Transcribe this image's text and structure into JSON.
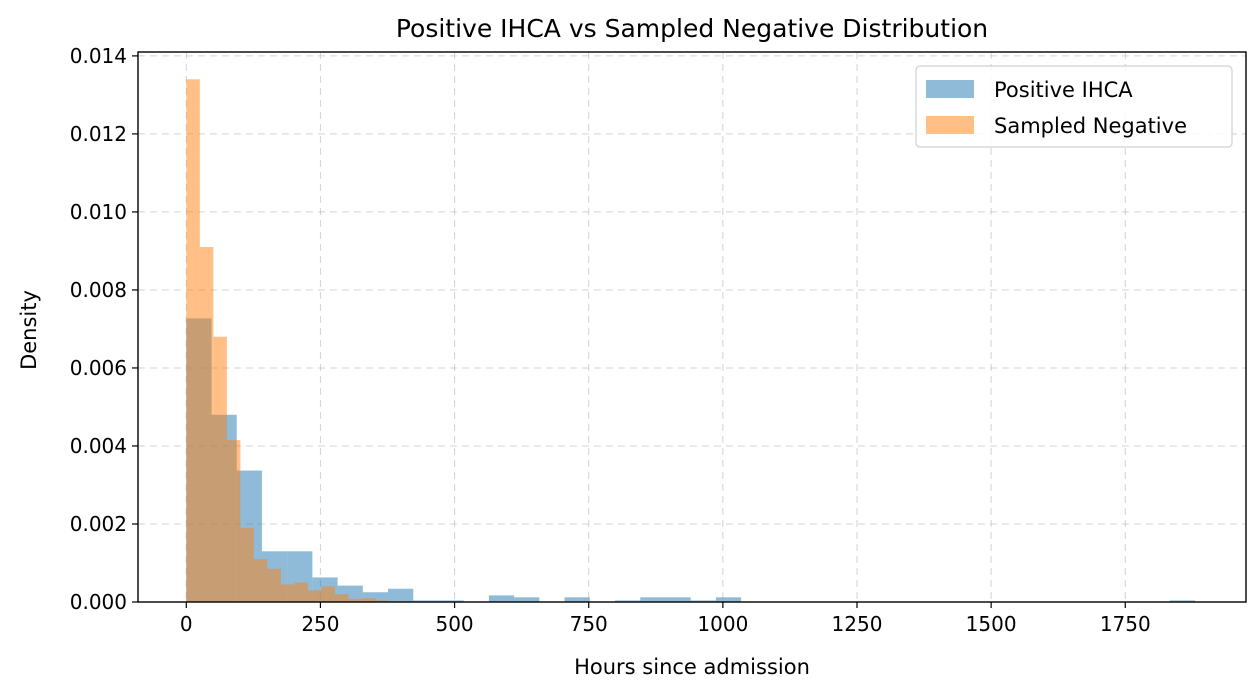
{
  "chart_data": {
    "type": "histogram",
    "title": "Positive IHCA vs Sampled Negative Distribution",
    "xlabel": "Hours since admission",
    "ylabel": "Density",
    "xlim": [
      -90,
      1975
    ],
    "ylim": [
      0,
      0.0141
    ],
    "xticks": [
      0,
      250,
      500,
      750,
      1000,
      1250,
      1500,
      1750
    ],
    "xtick_labels": [
      "0",
      "250",
      "500",
      "750",
      "1000",
      "1250",
      "1500",
      "1750"
    ],
    "yticks": [
      0,
      0.002,
      0.004,
      0.006,
      0.008,
      0.01,
      0.012,
      0.014
    ],
    "ytick_labels": [
      "0.000",
      "0.002",
      "0.004",
      "0.006",
      "0.008",
      "0.010",
      "0.012",
      "0.014"
    ],
    "grid": true,
    "legend_position": "upper-right",
    "series": [
      {
        "name": "Positive IHCA",
        "color": "#1f77b4",
        "alpha": 0.5,
        "bin_width": 47,
        "bins": [
          [
            0,
            0.00727
          ],
          [
            47,
            0.0048
          ],
          [
            94,
            0.00337
          ],
          [
            141,
            0.0013
          ],
          [
            188,
            0.0013
          ],
          [
            235,
            0.00063
          ],
          [
            282,
            0.00042
          ],
          [
            329,
            0.00025
          ],
          [
            376,
            0.00034
          ],
          [
            423,
            4e-05
          ],
          [
            470,
            4e-05
          ],
          [
            564,
            0.00017
          ],
          [
            611,
            0.00012
          ],
          [
            705,
            0.00012
          ],
          [
            799,
            4e-05
          ],
          [
            846,
            0.00012
          ],
          [
            893,
            0.00012
          ],
          [
            940,
            4e-05
          ],
          [
            987,
            0.00012
          ],
          [
            1833,
            4e-05
          ]
        ]
      },
      {
        "name": "Sampled Negative",
        "color": "#ff7f0e",
        "alpha": 0.5,
        "bin_width": 25.2,
        "bins": [
          [
            0,
            0.0134
          ],
          [
            25.2,
            0.0091
          ],
          [
            50.4,
            0.0068
          ],
          [
            75.6,
            0.00415
          ],
          [
            100.8,
            0.0019
          ],
          [
            126,
            0.0011
          ],
          [
            151.2,
            0.00085
          ],
          [
            176.4,
            0.00045
          ],
          [
            201.6,
            0.0005
          ],
          [
            226.8,
            0.0003
          ],
          [
            252,
            0.0004
          ],
          [
            277.2,
            0.0002
          ],
          [
            302.4,
            8e-05
          ],
          [
            327.6,
            0.0001
          ],
          [
            352.8,
            4e-05
          ]
        ]
      }
    ]
  }
}
